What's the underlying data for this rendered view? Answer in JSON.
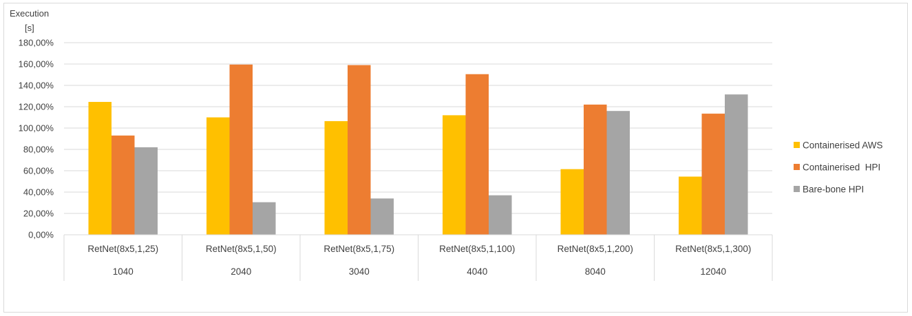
{
  "chart_data": {
    "type": "bar",
    "ylabel_line1": "Execution",
    "ylabel_line2": "[s]",
    "ylim": [
      0,
      180
    ],
    "ytick_step": 20,
    "ytick_labels": [
      "0,00%",
      "20,00%",
      "40,00%",
      "60,00%",
      "80,00%",
      "100,00%",
      "120,00%",
      "140,00%",
      "160,00%",
      "180,00%"
    ],
    "grid": true,
    "legend_position": "right",
    "categories": [
      "RetNet(8x5,1,25)",
      "RetNet(8x5,1,50)",
      "RetNet(8x5,1,75)",
      "RetNet(8x5,1,100)",
      "RetNet(8x5,1,200)",
      "RetNet(8x5,1,300)"
    ],
    "subcategories": [
      "1040",
      "2040",
      "3040",
      "4040",
      "8040",
      "12040"
    ],
    "series": [
      {
        "name": "Containerised AWS",
        "color": "#ffc000",
        "values": [
          124.5,
          110,
          106.5,
          112,
          61.5,
          54.5
        ]
      },
      {
        "name": "Containerised  HPI",
        "color": "#ed7d31",
        "values": [
          93,
          159.5,
          159,
          150.5,
          122,
          113.5
        ]
      },
      {
        "name": "Bare-bone HPI",
        "color": "#a5a5a5",
        "values": [
          82,
          30.5,
          34,
          37,
          116,
          131.5
        ]
      }
    ]
  }
}
